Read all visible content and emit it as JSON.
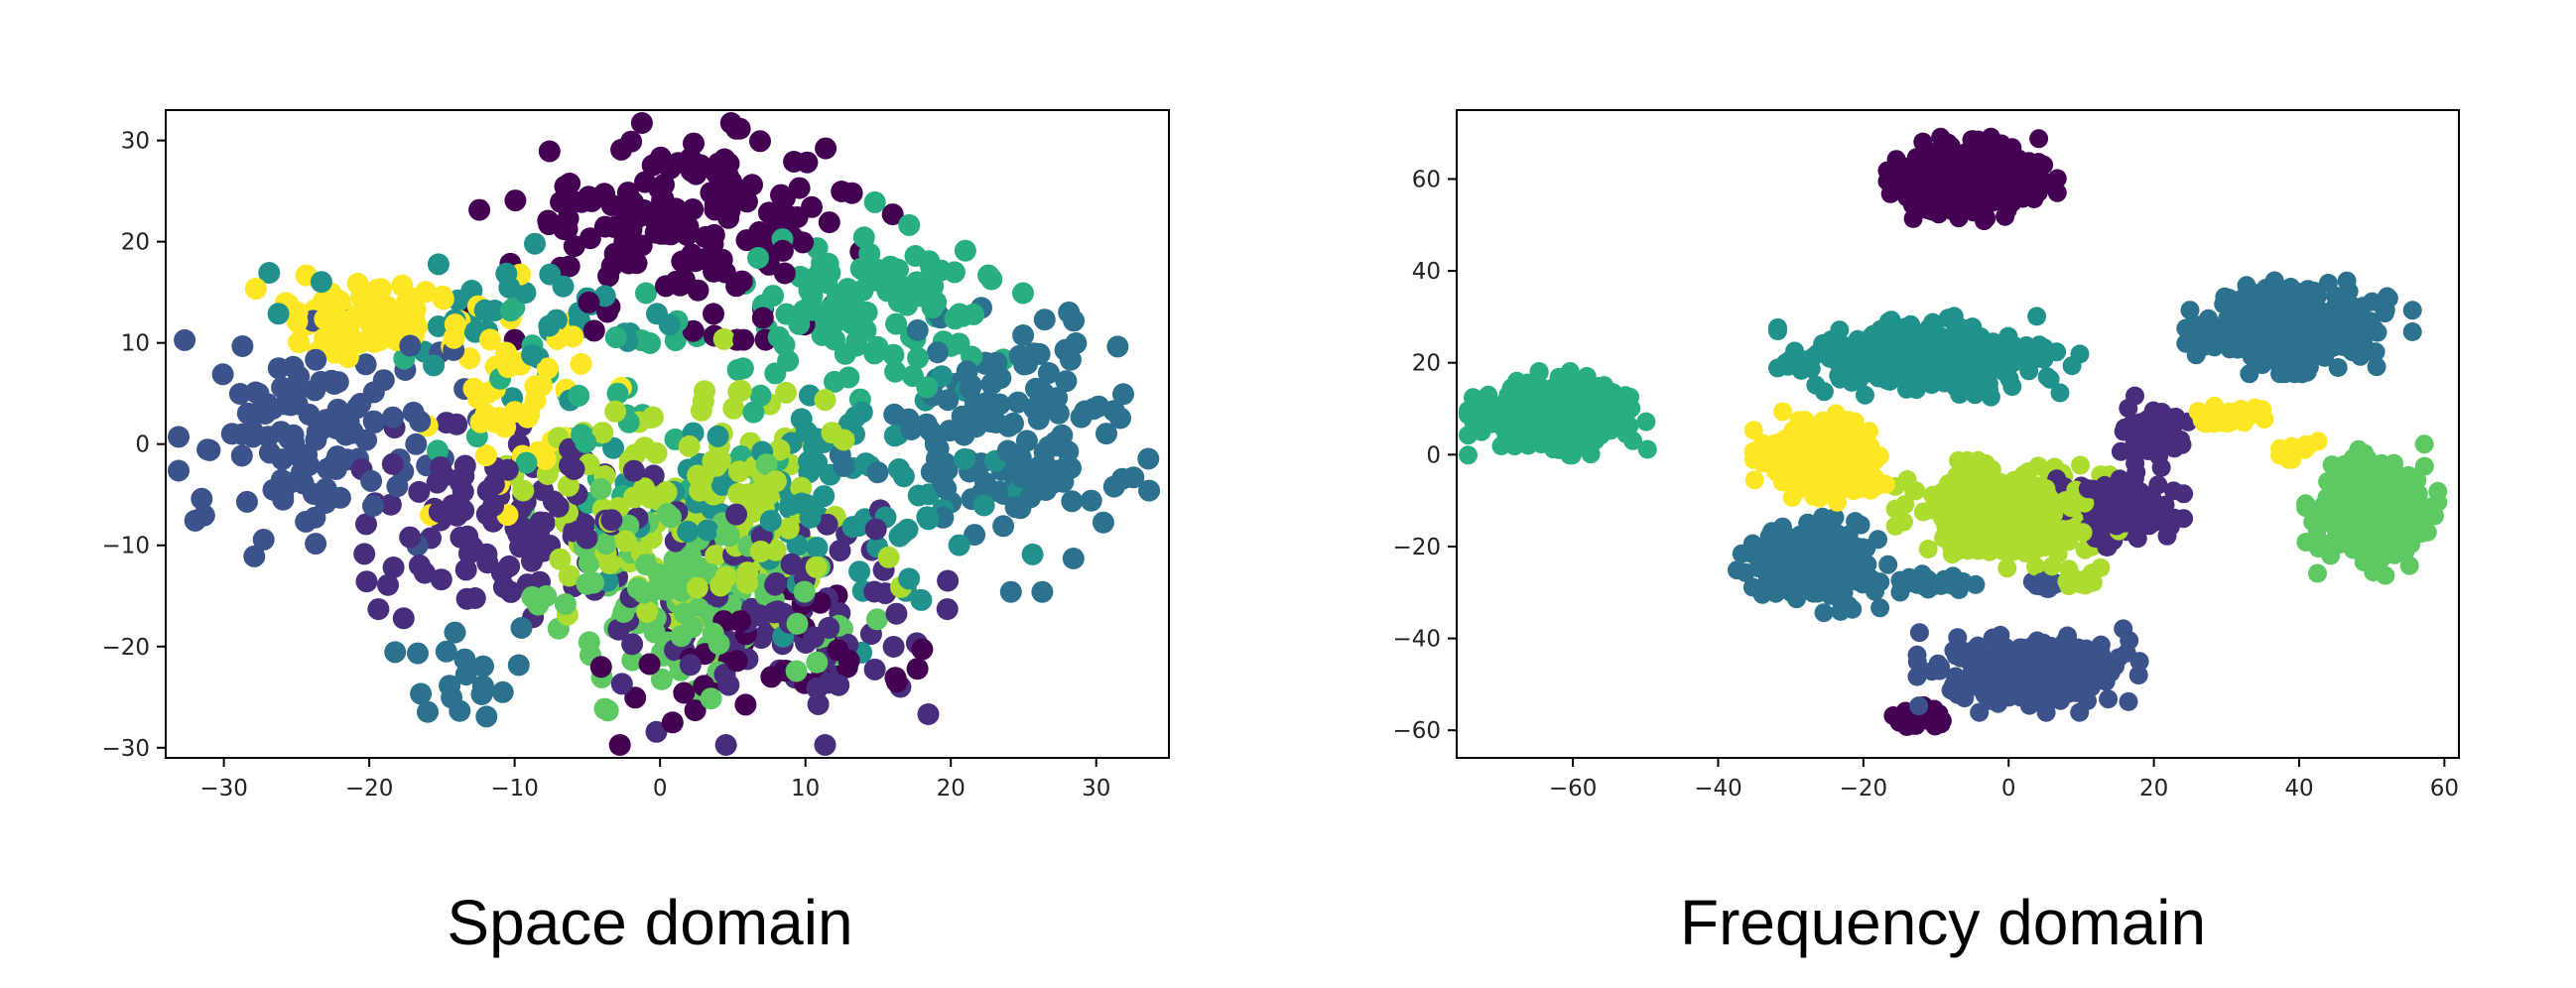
{
  "chart_data": [
    {
      "type": "scatter",
      "caption": "Space domain",
      "xlim": [
        -34,
        35
      ],
      "ylim": [
        -31,
        33
      ],
      "xticks": [
        -30,
        -20,
        -10,
        0,
        10,
        20,
        30
      ],
      "yticks": [
        -30,
        -20,
        -10,
        0,
        10,
        20,
        30
      ],
      "grid": false,
      "colors": [
        "#440154",
        "#472d7b",
        "#3b528b",
        "#2c728e",
        "#21918c",
        "#28ae80",
        "#5ec962",
        "#addc30",
        "#fde725"
      ],
      "clusters": [
        {
          "color": 0,
          "cx": 2,
          "cy": 22,
          "sx": 6,
          "sy": 4.5,
          "n": 170
        },
        {
          "color": 0,
          "cx": 7,
          "cy": -22,
          "sx": 5,
          "sy": 3,
          "n": 45
        },
        {
          "color": 1,
          "cx": -10,
          "cy": -8,
          "sx": 6,
          "sy": 4.5,
          "n": 110
        },
        {
          "color": 1,
          "cx": 9,
          "cy": -17,
          "sx": 5,
          "sy": 5,
          "n": 90
        },
        {
          "color": 2,
          "cx": -24,
          "cy": 1,
          "sx": 4.5,
          "sy": 5,
          "n": 110
        },
        {
          "color": 3,
          "cx": 24,
          "cy": 1,
          "sx": 4.5,
          "sy": 6,
          "n": 140
        },
        {
          "color": 3,
          "cx": -13,
          "cy": -22,
          "sx": 2.5,
          "sy": 3,
          "n": 18
        },
        {
          "color": 4,
          "cx": 12,
          "cy": -5,
          "sx": 7,
          "sy": 6,
          "n": 110
        },
        {
          "color": 4,
          "cx": -12,
          "cy": 12,
          "sx": 6,
          "sy": 3,
          "n": 40
        },
        {
          "color": 5,
          "cx": 15,
          "cy": 14,
          "sx": 4,
          "sy": 4,
          "n": 110
        },
        {
          "color": 5,
          "cx": -2,
          "cy": 4,
          "sx": 6,
          "sy": 5,
          "n": 40
        },
        {
          "color": 6,
          "cx": 2,
          "cy": -15,
          "sx": 5,
          "sy": 5,
          "n": 150
        },
        {
          "color": 7,
          "cx": 2,
          "cy": -5,
          "sx": 6,
          "sy": 6,
          "n": 160
        },
        {
          "color": 8,
          "cx": -20,
          "cy": 12,
          "sx": 3,
          "sy": 2,
          "n": 70
        },
        {
          "color": 8,
          "cx": -10,
          "cy": 6,
          "sx": 4,
          "sy": 5,
          "n": 50
        }
      ]
    },
    {
      "type": "scatter",
      "caption": "Frequency domain",
      "xlim": [
        -76,
        62
      ],
      "ylim": [
        -66,
        75
      ],
      "xticks": [
        -60,
        -40,
        -20,
        0,
        20,
        40,
        60
      ],
      "yticks": [
        -60,
        -40,
        -20,
        0,
        20,
        40,
        60
      ],
      "grid": false,
      "colors": [
        "#440154",
        "#472d7b",
        "#3b528b",
        "#2c728e",
        "#21918c",
        "#28ae80",
        "#5ec962",
        "#addc30",
        "#fde725"
      ],
      "clusters": [
        {
          "color": 0,
          "cx": -5,
          "cy": 60,
          "sx": 4.5,
          "sy": 3.5,
          "n": 400
        },
        {
          "color": 0,
          "cx": -12,
          "cy": -57,
          "sx": 1.5,
          "sy": 1.2,
          "n": 40
        },
        {
          "color": 1,
          "cx": 20,
          "cy": 5,
          "sx": 2,
          "sy": 3,
          "n": 60
        },
        {
          "color": 1,
          "cx": 15,
          "cy": -11,
          "sx": 3.5,
          "sy": 3.5,
          "n": 140
        },
        {
          "color": 2,
          "cx": 3,
          "cy": -47,
          "sx": 6,
          "sy": 3.5,
          "n": 300
        },
        {
          "color": 2,
          "cx": 5,
          "cy": -28,
          "sx": 1,
          "sy": 1,
          "n": 15
        },
        {
          "color": 3,
          "cx": -27,
          "cy": -24,
          "sx": 4,
          "sy": 4,
          "n": 280
        },
        {
          "color": 3,
          "cx": -10,
          "cy": -28,
          "sx": 2.5,
          "sy": 1,
          "n": 30
        },
        {
          "color": 3,
          "cx": 40,
          "cy": 28,
          "sx": 6,
          "sy": 4,
          "n": 350
        },
        {
          "color": 4,
          "cx": -11,
          "cy": 21,
          "sx": 8,
          "sy": 3.5,
          "n": 350
        },
        {
          "color": 5,
          "cx": -62,
          "cy": 9,
          "sx": 5,
          "sy": 3.5,
          "n": 400
        },
        {
          "color": 6,
          "cx": 50,
          "cy": -12,
          "sx": 3.5,
          "sy": 5.5,
          "n": 320
        },
        {
          "color": 7,
          "cx": 0,
          "cy": -13,
          "sx": 6,
          "sy": 4.5,
          "n": 380
        },
        {
          "color": 7,
          "cx": 10,
          "cy": -27,
          "sx": 1,
          "sy": 1,
          "n": 10
        },
        {
          "color": 8,
          "cx": -26,
          "cy": -1,
          "sx": 3.5,
          "sy": 4,
          "n": 280
        },
        {
          "color": 8,
          "cx": 30,
          "cy": 8,
          "sx": 2,
          "sy": 1.5,
          "n": 35
        },
        {
          "color": 8,
          "cx": 40,
          "cy": 1,
          "sx": 1.5,
          "sy": 1,
          "n": 15
        }
      ]
    }
  ]
}
